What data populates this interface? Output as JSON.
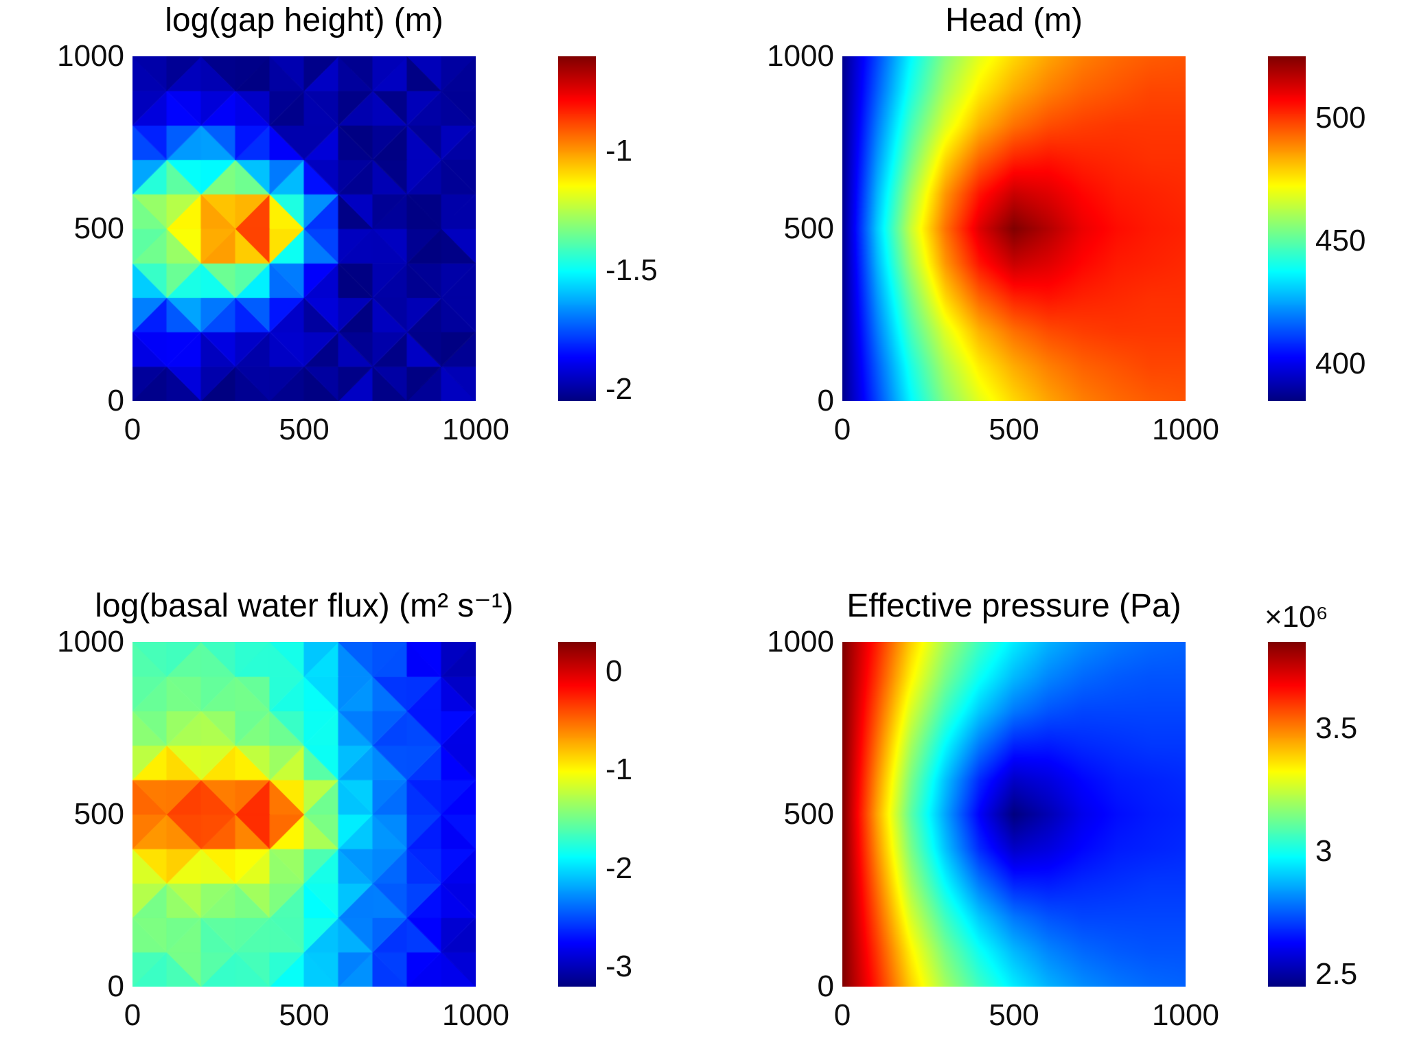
{
  "page": {
    "background": "#ffffff",
    "text_color": "#000000"
  },
  "chart_data": [
    {
      "type": "heatmap",
      "style": "faceted",
      "title": "log(gap height) (m)",
      "colormap": "jet",
      "vmin": -2.05,
      "vmax": -0.6,
      "facet_jitter": 0.05,
      "x": {
        "range": [
          0,
          1000
        ],
        "ticks": [
          {
            "label": "0",
            "value": 0
          },
          {
            "label": "500",
            "value": 500
          },
          {
            "label": "1000",
            "value": 1000
          }
        ]
      },
      "y": {
        "range": [
          0,
          1000
        ],
        "ticks": [
          {
            "label": "0",
            "value": 0
          },
          {
            "label": "500",
            "value": 500
          },
          {
            "label": "1000",
            "value": 1000
          }
        ]
      },
      "colorbar": {
        "ticks": [
          {
            "label": "-1",
            "value": -1
          },
          {
            "label": "-1.5",
            "value": -1.5
          },
          {
            "label": "-2",
            "value": -2
          }
        ]
      },
      "values_order": "rows bottom-to-top, x left-to-right, 0..1000 m",
      "values": [
        [
          -2,
          -2,
          -2,
          -2,
          -2,
          -2,
          -2,
          -2,
          -2,
          -2,
          -2
        ],
        [
          -2,
          -1.95,
          -1.95,
          -2,
          -2,
          -2,
          -2,
          -2,
          -2,
          -2,
          -2
        ],
        [
          -1.9,
          -1.85,
          -1.8,
          -1.85,
          -1.95,
          -2,
          -2,
          -2,
          -2,
          -2,
          -2
        ],
        [
          -1.7,
          -1.6,
          -1.55,
          -1.6,
          -1.75,
          -1.9,
          -2,
          -2,
          -2,
          -2,
          -2
        ],
        [
          -1.45,
          -1.35,
          -1.25,
          -1.15,
          -1.35,
          -1.7,
          -2,
          -2,
          -2,
          -2,
          -2
        ],
        [
          -1.35,
          -1.2,
          -1.05,
          -0.75,
          -0.65,
          -1.3,
          -2,
          -2,
          -2,
          -2,
          -2
        ],
        [
          -1.45,
          -1.35,
          -1.25,
          -1.15,
          -1.35,
          -1.7,
          -2,
          -2,
          -2,
          -2,
          -2
        ],
        [
          -1.7,
          -1.6,
          -1.55,
          -1.6,
          -1.75,
          -1.9,
          -2,
          -2,
          -2,
          -2,
          -2
        ],
        [
          -1.9,
          -1.85,
          -1.8,
          -1.85,
          -1.95,
          -2,
          -2,
          -2,
          -2,
          -2,
          -2
        ],
        [
          -2,
          -1.95,
          -1.95,
          -2,
          -2,
          -2,
          -2,
          -2,
          -2,
          -2,
          -2
        ],
        [
          -2,
          -2,
          -2,
          -2,
          -2,
          -2,
          -2,
          -2,
          -2,
          -2,
          -2
        ]
      ]
    },
    {
      "type": "heatmap",
      "style": "smooth",
      "title": "Head (m)",
      "colormap": "jet",
      "vmin": 385,
      "vmax": 525,
      "x": {
        "range": [
          0,
          1000
        ],
        "ticks": [
          {
            "label": "0",
            "value": 0
          },
          {
            "label": "500",
            "value": 500
          },
          {
            "label": "1000",
            "value": 1000
          }
        ]
      },
      "y": {
        "range": [
          0,
          1000
        ],
        "ticks": [
          {
            "label": "0",
            "value": 0
          },
          {
            "label": "500",
            "value": 500
          },
          {
            "label": "1000",
            "value": 1000
          }
        ]
      },
      "colorbar": {
        "ticks": [
          {
            "label": "500",
            "value": 500
          },
          {
            "label": "450",
            "value": 450
          },
          {
            "label": "400",
            "value": 400
          }
        ]
      },
      "values_order": "rows bottom-to-top, x left-to-right, 0..1000 m",
      "values": [
        [
          387,
          412,
          437,
          456,
          469,
          478,
          485,
          490,
          493,
          495,
          496
        ],
        [
          387,
          415,
          441,
          461,
          475,
          484,
          490,
          494,
          496,
          498,
          498
        ],
        [
          387,
          419,
          447,
          468,
          483,
          492,
          497,
          499,
          500,
          500,
          500
        ],
        [
          387,
          423,
          453,
          478,
          494,
          503,
          505,
          503,
          502,
          501,
          501
        ],
        [
          387,
          427,
          460,
          487,
          505,
          515,
          512,
          507,
          504,
          503,
          502
        ],
        [
          387,
          430,
          465,
          492,
          512,
          525,
          518,
          510,
          506,
          504,
          503
        ],
        [
          387,
          427,
          460,
          487,
          505,
          515,
          512,
          507,
          504,
          503,
          502
        ],
        [
          387,
          423,
          453,
          478,
          494,
          503,
          505,
          503,
          502,
          501,
          501
        ],
        [
          387,
          419,
          447,
          468,
          483,
          492,
          497,
          499,
          500,
          500,
          500
        ],
        [
          387,
          415,
          441,
          461,
          475,
          484,
          490,
          494,
          496,
          498,
          498
        ],
        [
          387,
          412,
          437,
          456,
          469,
          478,
          485,
          490,
          493,
          495,
          496
        ]
      ]
    },
    {
      "type": "heatmap",
      "style": "faceted",
      "title": "log(basal water flux) (m² s⁻¹)",
      "colormap": "jet",
      "vmin": -3.2,
      "vmax": 0.3,
      "facet_jitter": 0.09,
      "x": {
        "range": [
          0,
          1000
        ],
        "ticks": [
          {
            "label": "0",
            "value": 0
          },
          {
            "label": "500",
            "value": 500
          },
          {
            "label": "1000",
            "value": 1000
          }
        ]
      },
      "y": {
        "range": [
          0,
          1000
        ],
        "ticks": [
          {
            "label": "0",
            "value": 0
          },
          {
            "label": "500",
            "value": 500
          },
          {
            "label": "1000",
            "value": 1000
          }
        ]
      },
      "colorbar": {
        "ticks": [
          {
            "label": "0",
            "value": 0
          },
          {
            "label": "-1",
            "value": -1
          },
          {
            "label": "-2",
            "value": -2
          },
          {
            "label": "-3",
            "value": -3
          }
        ]
      },
      "values_order": "rows bottom-to-top, x left-to-right, 0..1000 m",
      "values": [
        [
          -1.65,
          -1.6,
          -1.6,
          -1.65,
          -1.7,
          -1.9,
          -2.2,
          -2.45,
          -2.65,
          -2.85,
          -3.05
        ],
        [
          -1.6,
          -1.55,
          -1.55,
          -1.6,
          -1.65,
          -1.85,
          -2.15,
          -2.4,
          -2.6,
          -2.8,
          -3.0
        ],
        [
          -1.5,
          -1.45,
          -1.45,
          -1.5,
          -1.55,
          -1.75,
          -2.1,
          -2.35,
          -2.55,
          -2.75,
          -2.95
        ],
        [
          -1.3,
          -1.25,
          -1.2,
          -1.25,
          -1.35,
          -1.6,
          -2.05,
          -2.3,
          -2.5,
          -2.7,
          -2.9
        ],
        [
          -0.9,
          -0.8,
          -0.75,
          -0.8,
          -0.95,
          -1.3,
          -1.95,
          -2.25,
          -2.45,
          -2.65,
          -2.85
        ],
        [
          -0.35,
          -0.2,
          -0.3,
          -0.1,
          -0.05,
          -0.5,
          -1.9,
          -2.2,
          -2.45,
          -2.65,
          -2.85
        ],
        [
          -0.9,
          -0.8,
          -0.75,
          -0.8,
          -0.95,
          -1.3,
          -1.95,
          -2.25,
          -2.45,
          -2.65,
          -2.85
        ],
        [
          -1.3,
          -1.25,
          -1.2,
          -1.25,
          -1.35,
          -1.6,
          -2.05,
          -2.3,
          -2.5,
          -2.7,
          -2.9
        ],
        [
          -1.5,
          -1.45,
          -1.45,
          -1.5,
          -1.55,
          -1.75,
          -2.1,
          -2.35,
          -2.55,
          -2.75,
          -2.95
        ],
        [
          -1.6,
          -1.55,
          -1.55,
          -1.6,
          -1.65,
          -1.85,
          -2.15,
          -2.4,
          -2.6,
          -2.8,
          -3.0
        ],
        [
          -1.7,
          -1.65,
          -1.6,
          -1.65,
          -1.75,
          -1.95,
          -2.25,
          -2.5,
          -2.7,
          -2.95,
          -3.15
        ]
      ]
    },
    {
      "type": "heatmap",
      "style": "smooth",
      "title": "Effective pressure (Pa)",
      "colormap": "jet",
      "vmin": 2.45,
      "vmax": 3.85,
      "value_scale_note": "values in units of 1e6 Pa",
      "x": {
        "range": [
          0,
          1000
        ],
        "ticks": [
          {
            "label": "0",
            "value": 0
          },
          {
            "label": "500",
            "value": 500
          },
          {
            "label": "1000",
            "value": 1000
          }
        ]
      },
      "y": {
        "range": [
          0,
          1000
        ],
        "ticks": [
          {
            "label": "0",
            "value": 0
          },
          {
            "label": "500",
            "value": 500
          },
          {
            "label": "1000",
            "value": 1000
          }
        ]
      },
      "colorbar": {
        "multiplier": "×10⁶",
        "ticks": [
          {
            "label": "3.5",
            "value": 3.5
          },
          {
            "label": "3",
            "value": 3
          },
          {
            "label": "2.5",
            "value": 2.5
          }
        ]
      },
      "values_order": "rows bottom-to-top, x left-to-right, 0..1000 m",
      "values": [
        [
          3.85,
          3.63,
          3.39,
          3.2,
          3.06,
          2.95,
          2.87,
          2.82,
          2.79,
          2.77,
          2.76
        ],
        [
          3.85,
          3.6,
          3.34,
          3.14,
          2.99,
          2.88,
          2.81,
          2.77,
          2.75,
          2.74,
          2.74
        ],
        [
          3.85,
          3.56,
          3.27,
          3.06,
          2.9,
          2.79,
          2.74,
          2.72,
          2.72,
          2.72,
          2.72
        ],
        [
          3.85,
          3.52,
          3.2,
          2.97,
          2.79,
          2.67,
          2.66,
          2.68,
          2.69,
          2.7,
          2.7
        ],
        [
          3.85,
          3.48,
          3.14,
          2.89,
          2.68,
          2.55,
          2.58,
          2.63,
          2.66,
          2.67,
          2.68
        ],
        [
          3.85,
          3.45,
          3.1,
          2.85,
          2.62,
          2.45,
          2.52,
          2.6,
          2.64,
          2.66,
          2.67
        ],
        [
          3.85,
          3.48,
          3.14,
          2.89,
          2.68,
          2.55,
          2.58,
          2.63,
          2.66,
          2.67,
          2.68
        ],
        [
          3.85,
          3.52,
          3.2,
          2.97,
          2.79,
          2.67,
          2.66,
          2.68,
          2.69,
          2.7,
          2.7
        ],
        [
          3.85,
          3.56,
          3.27,
          3.06,
          2.9,
          2.79,
          2.74,
          2.72,
          2.72,
          2.72,
          2.72
        ],
        [
          3.85,
          3.6,
          3.34,
          3.14,
          2.99,
          2.88,
          2.81,
          2.77,
          2.75,
          2.74,
          2.74
        ],
        [
          3.85,
          3.63,
          3.39,
          3.2,
          3.06,
          2.95,
          2.87,
          2.82,
          2.79,
          2.77,
          2.76
        ]
      ]
    }
  ]
}
